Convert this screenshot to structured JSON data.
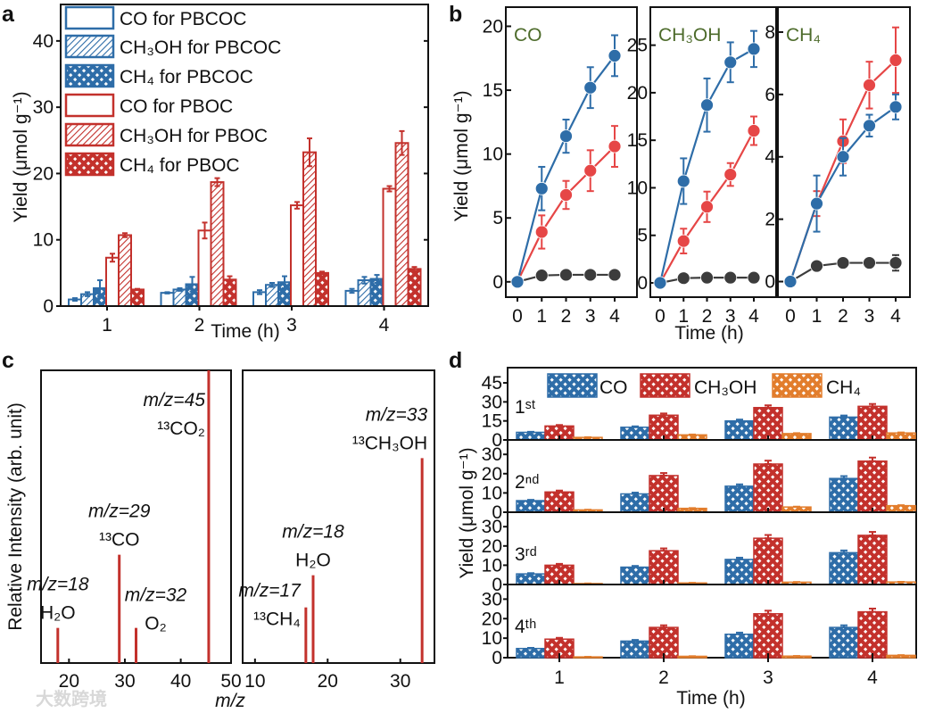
{
  "colors": {
    "blue": "#2e6da8",
    "red": "#c3312c",
    "orange": "#e27d2c",
    "line_red": "#e64646",
    "gray": "#3c3c3c",
    "title_green": "#4d6b2b"
  },
  "watermark": "大数跨境",
  "chart_data": [
    {
      "id": "a",
      "panel_label": "a",
      "type": "bar",
      "xlabel": "Time (h)",
      "ylabel": "Yield (μmol g⁻¹)",
      "ylim": [
        0,
        45.5
      ],
      "yticks": [
        "0",
        "10",
        "20",
        "30",
        "40"
      ],
      "categories": [
        "1",
        "2",
        "3",
        "4"
      ],
      "legend_position": "top-left",
      "series": [
        {
          "name": "CO for PBCOC",
          "color": "blue",
          "fill": "open",
          "values": [
            1.0,
            2.0,
            2.1,
            2.3
          ],
          "errors": [
            0.2,
            0.1,
            0.3,
            0.3
          ]
        },
        {
          "name": "CH₃OH for PBCOC",
          "color": "blue",
          "fill": "hatch",
          "values": [
            1.8,
            2.5,
            3.2,
            3.9
          ],
          "errors": [
            0.3,
            0.2,
            0.3,
            0.5
          ]
        },
        {
          "name": "CH₄ for PBCOC",
          "color": "blue",
          "fill": "cross",
          "values": [
            2.7,
            3.3,
            3.6,
            4.1
          ],
          "errors": [
            1.2,
            1.1,
            0.9,
            0.6
          ]
        },
        {
          "name": "CO for PBOC",
          "color": "red",
          "fill": "open",
          "values": [
            7.3,
            11.4,
            15.2,
            17.7
          ],
          "errors": [
            0.6,
            1.2,
            0.5,
            0.4
          ]
        },
        {
          "name": "CH₃OH for PBOC",
          "color": "red",
          "fill": "hatch",
          "values": [
            10.7,
            18.7,
            23.2,
            24.6
          ],
          "errors": [
            0.3,
            0.6,
            2.1,
            1.8
          ]
        },
        {
          "name": "CH₄ for PBOC",
          "color": "red",
          "fill": "cross",
          "values": [
            2.5,
            4.0,
            5.0,
            5.6
          ],
          "errors": [
            0.1,
            0.5,
            0.2,
            0.3
          ]
        }
      ]
    },
    {
      "id": "b",
      "panel_label": "b",
      "type": "line",
      "xlabel": "Time (h)",
      "ylabel": "Yield (μmol g⁻¹)",
      "x": [
        0,
        1,
        2,
        3,
        4
      ],
      "xticks": [
        "0",
        "1",
        "2",
        "3",
        "4"
      ],
      "subplots": [
        {
          "title": "CO",
          "ylim": [
            -1.2,
            21.5
          ],
          "yticks": [
            0,
            5,
            10,
            15,
            20
          ],
          "ytick_labels": [
            "0",
            "5",
            "10",
            "15",
            "20"
          ],
          "series": [
            {
              "color": "blue",
              "values": [
                0,
                7.3,
                11.4,
                15.2,
                17.7
              ],
              "errors": [
                0,
                1.7,
                1.3,
                1.6,
                1.6
              ]
            },
            {
              "color": "line_red",
              "values": [
                0,
                3.9,
                6.8,
                8.7,
                10.6
              ],
              "errors": [
                0,
                1.3,
                1.1,
                1.6,
                1.6
              ]
            },
            {
              "color": "gray",
              "values": [
                0,
                0.5,
                0.55,
                0.55,
                0.55
              ],
              "errors": [
                0,
                0.2,
                0.2,
                0.2,
                0.2
              ]
            }
          ]
        },
        {
          "title": "CH₃OH",
          "ylim": [
            -1.5,
            29
          ],
          "yticks": [
            0,
            5,
            10,
            15,
            20,
            25
          ],
          "ytick_labels": [
            "0",
            "5",
            "10",
            "15",
            "20",
            "25"
          ],
          "series": [
            {
              "color": "blue",
              "values": [
                0,
                10.7,
                18.7,
                23.2,
                24.6
              ],
              "errors": [
                0,
                2.4,
                2.8,
                2.1,
                1.9
              ]
            },
            {
              "color": "line_red",
              "values": [
                0,
                4.4,
                8.0,
                11.4,
                16.0
              ],
              "errors": [
                0,
                1.3,
                1.6,
                1.2,
                1.5
              ]
            },
            {
              "color": "gray",
              "values": [
                0,
                0.5,
                0.55,
                0.55,
                0.55
              ],
              "errors": [
                0,
                0.2,
                0.2,
                0.2,
                0.2
              ]
            }
          ]
        },
        {
          "title": "CH₄",
          "ylim": [
            -0.5,
            8.8
          ],
          "yticks": [
            0,
            2,
            4,
            6,
            8
          ],
          "ytick_labels": [
            "0",
            "2",
            "4",
            "6",
            "8"
          ],
          "series": [
            {
              "color": "blue",
              "values": [
                0,
                2.5,
                4.0,
                5.0,
                5.6
              ],
              "errors": [
                0,
                0.9,
                0.6,
                0.35,
                0.4
              ]
            },
            {
              "color": "line_red",
              "values": [
                0,
                2.5,
                4.5,
                6.3,
                7.1
              ],
              "errors": [
                0,
                0.4,
                0.7,
                0.75,
                1.05
              ]
            },
            {
              "color": "gray",
              "values": [
                0,
                0.5,
                0.6,
                0.6,
                0.6
              ],
              "errors": [
                0,
                0.15,
                0.15,
                0.15,
                0.25
              ]
            }
          ]
        }
      ]
    },
    {
      "id": "c",
      "panel_label": "c",
      "type": "bar",
      "xlabel": "m/z",
      "ylabel": "Relative Intensity (arb. unit)",
      "subplots": [
        {
          "xlim": [
            15,
            49
          ],
          "xticks": [
            20,
            30,
            40,
            50
          ],
          "xtick_labels": [
            "20",
            "30",
            "40",
            "50"
          ],
          "peaks": [
            {
              "mz": 18,
              "intensity": 0.12,
              "label1": "m/z=18",
              "label2": "H₂O"
            },
            {
              "mz": 29,
              "intensity": 0.37,
              "label1": "m/z=29",
              "label2": "¹³CO"
            },
            {
              "mz": 32,
              "intensity": 0.12,
              "label1": "m/z=32",
              "label2": "O₂"
            },
            {
              "mz": 45,
              "intensity": 1.0,
              "label1": "m/z=45",
              "label2": "¹³CO₂"
            }
          ]
        },
        {
          "xlim": [
            8.3,
            34.7
          ],
          "xticks": [
            10,
            20,
            30
          ],
          "xtick_labels": [
            "10",
            "20",
            "30"
          ],
          "peaks": [
            {
              "mz": 17,
              "intensity": 0.19,
              "label1": "m/z=17",
              "label2": "¹³CH₄"
            },
            {
              "mz": 18,
              "intensity": 0.3,
              "label1": "m/z=18",
              "label2": "H₂O"
            },
            {
              "mz": 33,
              "intensity": 0.7,
              "label1": "m/z=33",
              "label2": "¹³CH₃OH"
            }
          ]
        }
      ]
    },
    {
      "id": "d",
      "panel_label": "d",
      "type": "bar",
      "xlabel": "Time (h)",
      "ylabel": "Yield (μmol g⁻¹)",
      "categories": [
        "1",
        "2",
        "3",
        "4"
      ],
      "legend": [
        "CO",
        "CH₃OH",
        "CH₄"
      ],
      "legend_position": "top",
      "series_colors": [
        "blue",
        "red",
        "orange"
      ],
      "cycles": [
        {
          "label": "1ˢᵗ",
          "ylim": [
            0,
            57
          ],
          "yticks": [
            "0",
            "15",
            "30",
            "45"
          ],
          "ytick_values": [
            0,
            15,
            30,
            45
          ],
          "CO": [
            6,
            10,
            15,
            18
          ],
          "CH3OH": [
            11,
            19.5,
            25.5,
            26.5
          ],
          "CH4": [
            2,
            4,
            5,
            5.5
          ]
        },
        {
          "label": "2ⁿᵈ",
          "ylim": [
            0,
            37.5
          ],
          "yticks": [
            "0",
            "10",
            "20",
            "30"
          ],
          "ytick_values": [
            0,
            10,
            20,
            30
          ],
          "CO": [
            6,
            9.5,
            13.5,
            17.5
          ],
          "CH3OH": [
            10.5,
            19,
            25,
            26.5
          ],
          "CH4": [
            1.2,
            2,
            2.7,
            3.4
          ]
        },
        {
          "label": "3ʳᵈ",
          "ylim": [
            0,
            37.5
          ],
          "yticks": [
            "0",
            "10",
            "20",
            "30"
          ],
          "ytick_values": [
            0,
            10,
            20,
            30
          ],
          "CO": [
            5.5,
            9,
            13,
            16.5
          ],
          "CH3OH": [
            10,
            17.5,
            24,
            25.5
          ],
          "CH4": [
            0.5,
            0.8,
            1.2,
            1.3
          ]
        },
        {
          "label": "4ᵗʰ",
          "ylim": [
            0,
            37.5
          ],
          "yticks": [
            "0",
            "10",
            "20",
            "30"
          ],
          "ytick_values": [
            0,
            10,
            20,
            30
          ],
          "CO": [
            4.7,
            8.5,
            12,
            15.5
          ],
          "CH3OH": [
            9.5,
            15.5,
            22.5,
            23.5
          ],
          "CH4": [
            0.4,
            0.7,
            0.8,
            1.2
          ]
        }
      ]
    }
  ]
}
